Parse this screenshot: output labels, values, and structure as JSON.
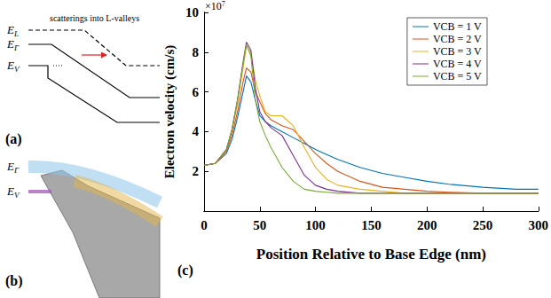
{
  "chart_data": {
    "type": "line",
    "panel_label": "(c)",
    "x_title": "Position Relative to Base Edge (nm)",
    "y_title": "Electron velocity (cm/s)",
    "y_scale": {
      "base": "×10",
      "exponent": "7"
    },
    "x": [
      0,
      10,
      20,
      25,
      30,
      35,
      38,
      42,
      46,
      50,
      55,
      60,
      70,
      80,
      90,
      100,
      110,
      120,
      140,
      160,
      180,
      200,
      220,
      250,
      280,
      300
    ],
    "series": [
      {
        "name": "VCB = 1 V",
        "color": "#0072BD",
        "values": [
          2.3,
          2.4,
          2.9,
          3.6,
          4.7,
          6.0,
          6.8,
          6.5,
          5.6,
          4.8,
          4.5,
          4.3,
          4.0,
          3.7,
          3.4,
          3.1,
          2.85,
          2.6,
          2.2,
          1.9,
          1.7,
          1.5,
          1.35,
          1.2,
          1.1,
          1.1
        ]
      },
      {
        "name": "VCB = 2 V",
        "color": "#D95319",
        "values": [
          2.3,
          2.4,
          3.0,
          3.8,
          5.0,
          6.5,
          7.2,
          7.0,
          6.0,
          5.5,
          4.9,
          4.6,
          4.3,
          4.1,
          3.5,
          2.9,
          2.4,
          2.0,
          1.5,
          1.2,
          1.1,
          1.0,
          0.95,
          0.9,
          0.9,
          0.9
        ]
      },
      {
        "name": "VCB = 3 V",
        "color": "#EDB120",
        "values": [
          2.3,
          2.4,
          3.1,
          4.0,
          5.4,
          7.2,
          8.3,
          8.0,
          6.6,
          5.8,
          5.0,
          4.8,
          4.8,
          4.3,
          3.2,
          2.2,
          1.6,
          1.3,
          1.1,
          1.0,
          0.9,
          0.9,
          0.9,
          0.9,
          0.9,
          0.9
        ]
      },
      {
        "name": "VCB = 4 V",
        "color": "#7E2F8E",
        "values": [
          2.3,
          2.4,
          3.1,
          4.1,
          5.6,
          7.5,
          8.5,
          8.1,
          6.2,
          5.0,
          4.5,
          4.2,
          3.8,
          2.8,
          1.8,
          1.3,
          1.1,
          1.0,
          0.9,
          0.9,
          0.9,
          0.9,
          0.9,
          0.9,
          0.9,
          0.9
        ]
      },
      {
        "name": "VCB = 5 V",
        "color": "#77AC30",
        "values": [
          2.3,
          2.4,
          3.1,
          4.1,
          5.6,
          7.4,
          8.4,
          7.8,
          5.6,
          4.5,
          3.8,
          3.2,
          2.2,
          1.5,
          1.1,
          1.0,
          0.95,
          0.9,
          0.9,
          0.9,
          0.9,
          0.9,
          0.9,
          0.9,
          0.9,
          0.9
        ]
      }
    ],
    "xlim": [
      0,
      300
    ],
    "xticks": [
      0,
      50,
      100,
      150,
      200,
      250,
      300
    ],
    "ylim": [
      0,
      10
    ],
    "yticks": [
      2,
      4,
      6,
      8,
      10
    ],
    "grid": false,
    "legend": "upper right"
  },
  "panel_a": {
    "label": "(a)",
    "annotation": "scatterings into L-valleys",
    "levels": [
      {
        "main": "E",
        "sub": "L"
      },
      {
        "main": "E",
        "sub": "Γ"
      },
      {
        "main": "E",
        "sub": "V"
      }
    ]
  },
  "panel_b": {
    "label": "(b)",
    "levels": [
      {
        "main": "E",
        "sub": "Γ"
      },
      {
        "main": "E",
        "sub": "V"
      }
    ]
  }
}
